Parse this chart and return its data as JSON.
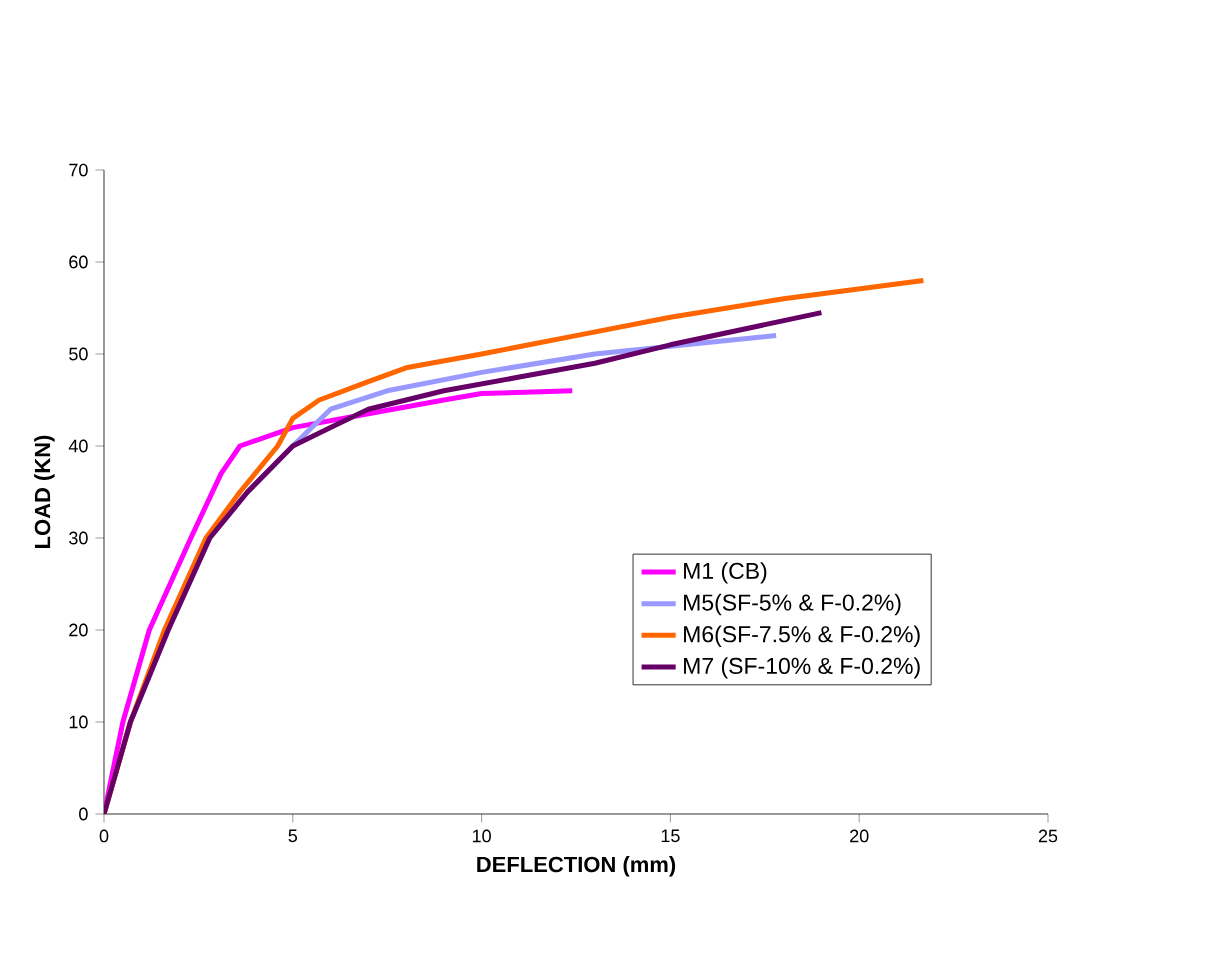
{
  "chart_data": {
    "type": "line",
    "xlabel": "DEFLECTION (mm)",
    "ylabel": "LOAD (KN)",
    "xlim": [
      0,
      25
    ],
    "ylim": [
      0,
      70
    ],
    "xticks": [
      0,
      5,
      10,
      15,
      20,
      25
    ],
    "yticks": [
      0,
      10,
      20,
      30,
      40,
      50,
      60,
      70
    ],
    "legend": "right",
    "marker": "none",
    "line_style": "solid",
    "series": [
      {
        "name": "M1 (CB)",
        "color": "#ff00ff",
        "x": [
          0,
          0.5,
          1.2,
          2.3,
          3.1,
          3.6,
          5,
          7,
          9,
          10,
          12.4
        ],
        "values": [
          0,
          10,
          20,
          30,
          37,
          40,
          42,
          43.5,
          45,
          45.7,
          46
        ]
      },
      {
        "name": "M5(SF-5% & F-0.2%)",
        "color": "#9999ff",
        "x": [
          0,
          0.7,
          1.7,
          2.8,
          3.8,
          5,
          6,
          7.5,
          10,
          13,
          17.8
        ],
        "values": [
          0,
          10,
          20,
          30,
          35,
          40,
          44,
          46,
          48,
          50,
          52
        ]
      },
      {
        "name": "M6(SF-7.5% & F-0.2%)",
        "color": "#ff6600",
        "x": [
          0,
          0.7,
          1.6,
          2.7,
          3.6,
          4.6,
          5,
          5.7,
          7,
          8,
          10,
          12.5,
          15,
          16.5,
          18,
          21.7
        ],
        "values": [
          0,
          10,
          20,
          30,
          35,
          40,
          43,
          45,
          47,
          48.5,
          50,
          52,
          54,
          55,
          56,
          58
        ]
      },
      {
        "name": "M7 (SF-10% & F-0.2%)",
        "color": "#660066",
        "x": [
          0,
          0.7,
          1.7,
          2.8,
          3.8,
          5,
          6,
          7,
          9,
          11,
          13,
          15,
          19
        ],
        "values": [
          0,
          10,
          20,
          30,
          35,
          40,
          42,
          44,
          46,
          47.5,
          49,
          51,
          54.5
        ]
      }
    ]
  }
}
